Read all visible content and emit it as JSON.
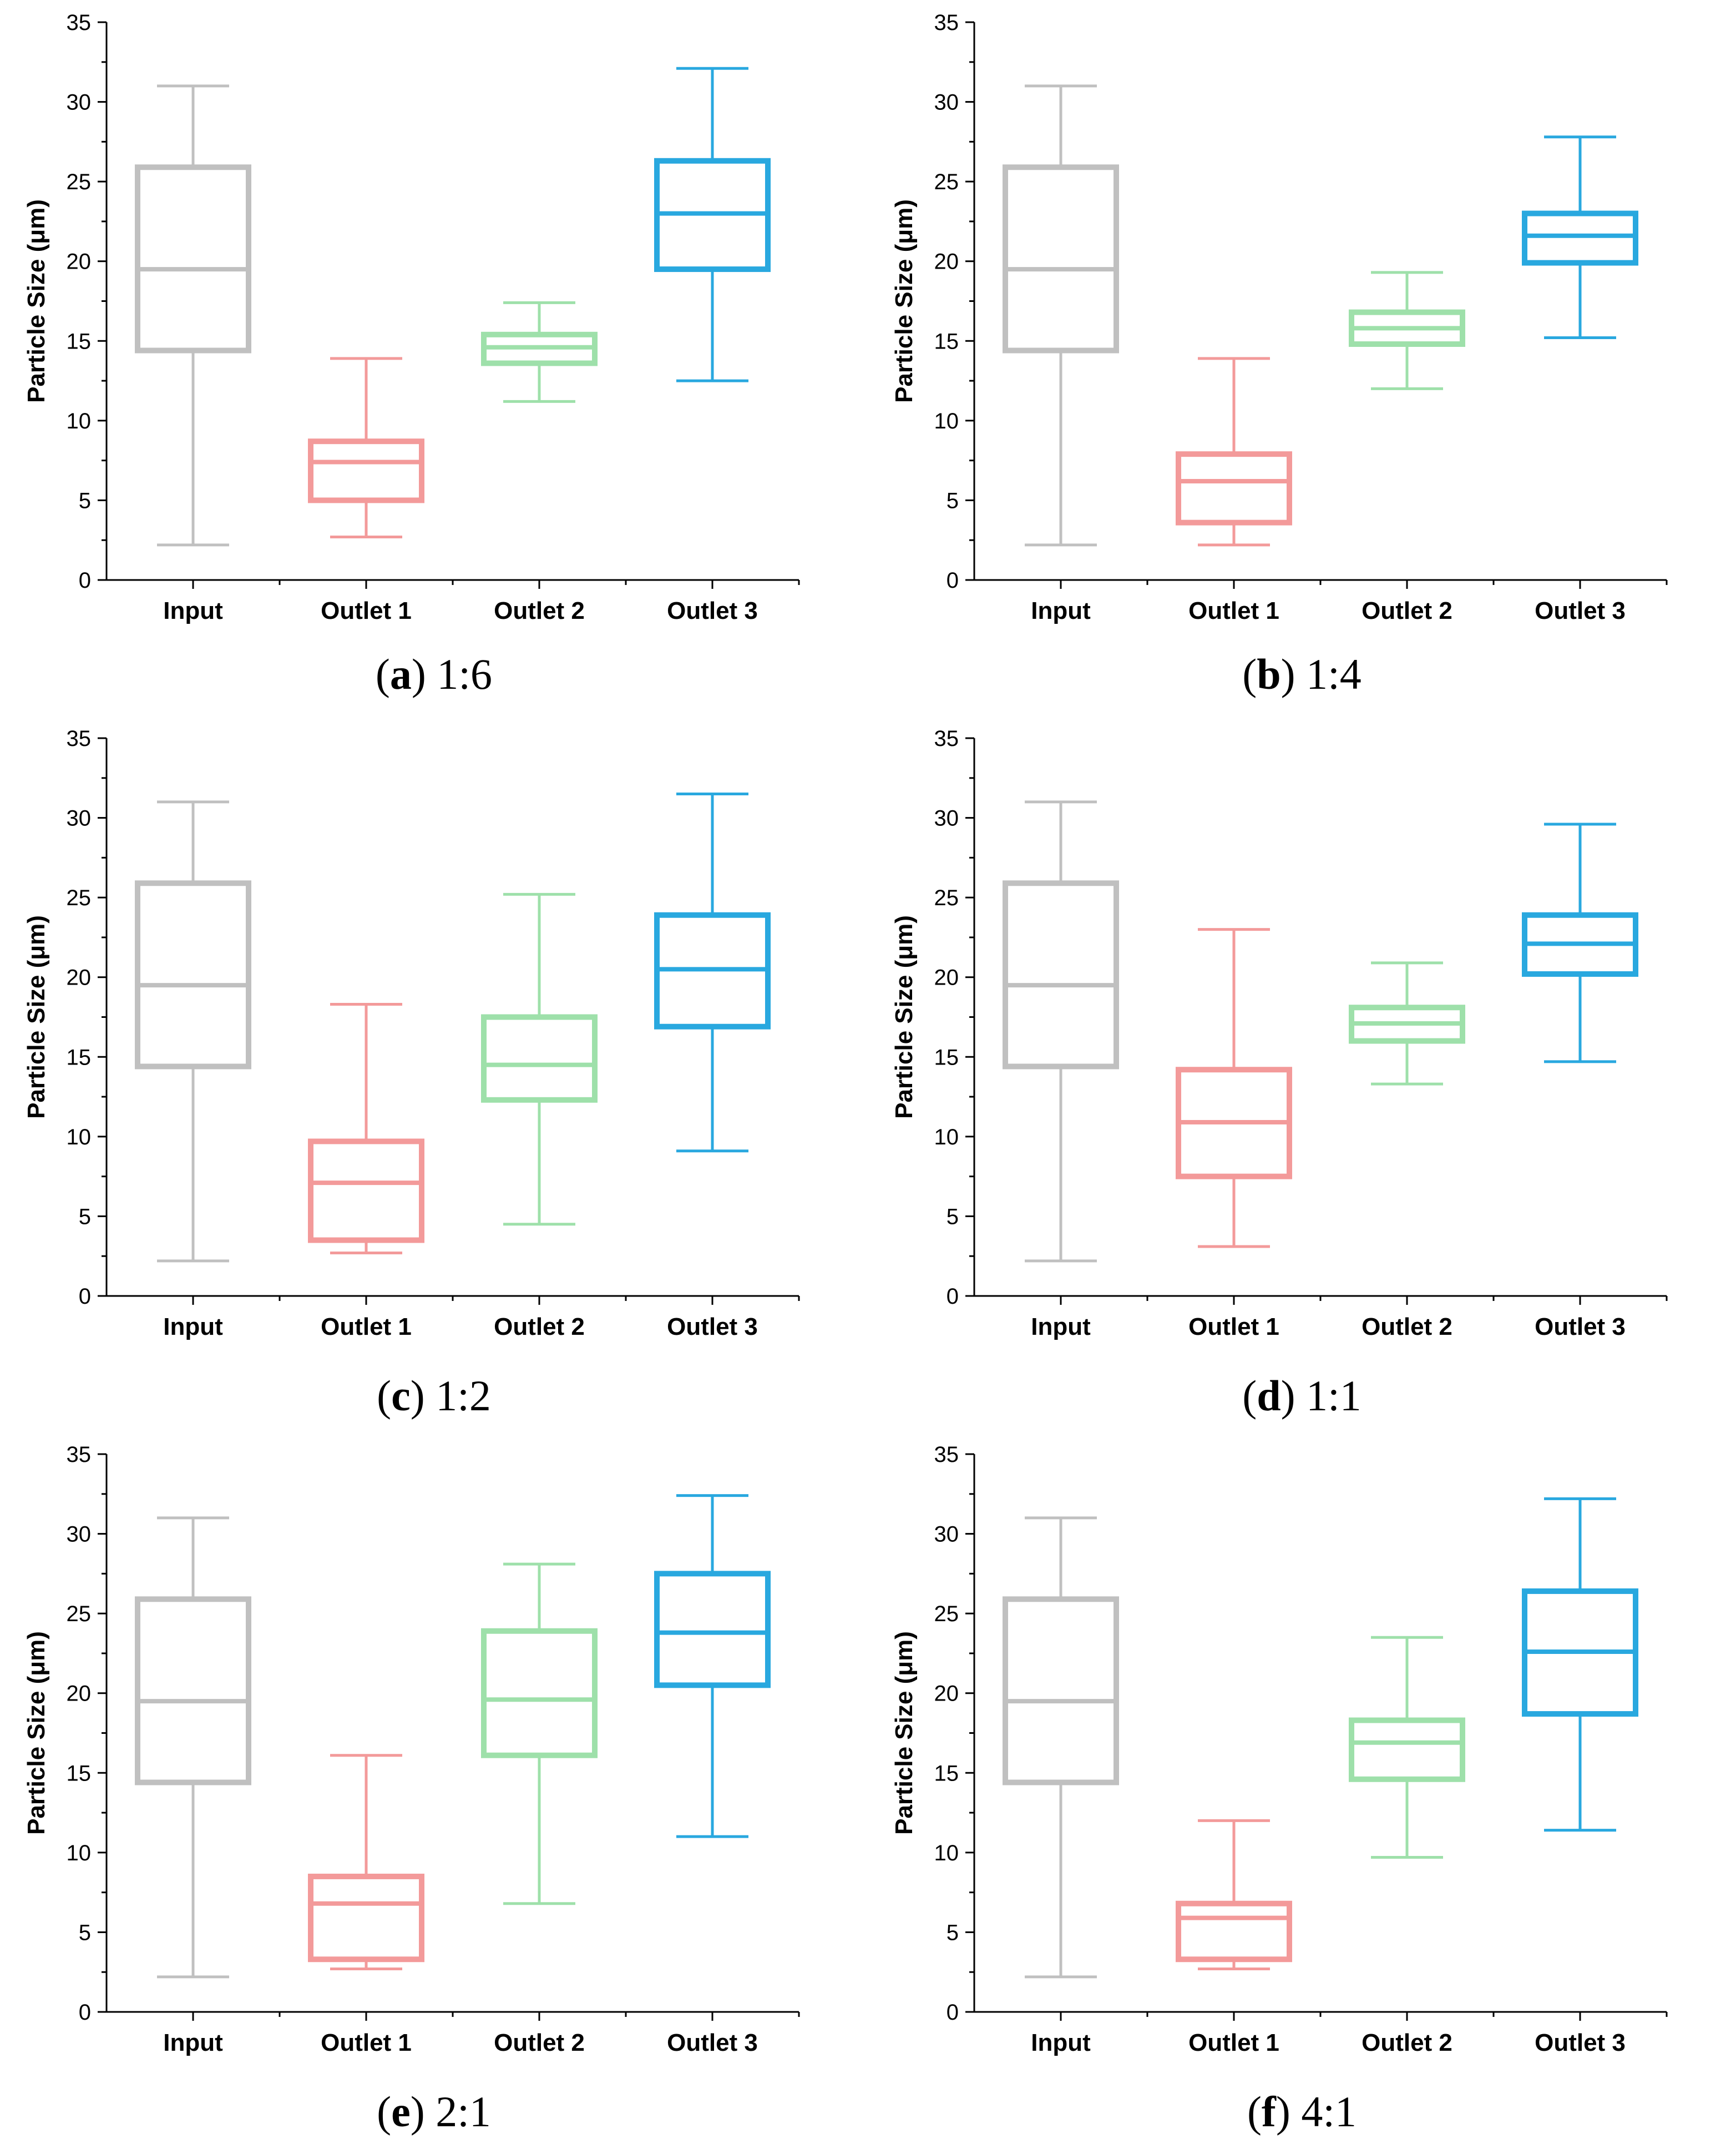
{
  "chart_data": [
    {
      "type": "box",
      "panel_letter": "a",
      "ratio": "1:6",
      "ylabel": "Particle Size (μm)",
      "ylim": [
        0,
        35
      ],
      "yticks": [
        0,
        5,
        10,
        15,
        20,
        25,
        30,
        35
      ],
      "categories": [
        "Input",
        "Outlet 1",
        "Outlet 2",
        "Outlet 3"
      ],
      "boxes": [
        {
          "min": 2.2,
          "q1": 14.4,
          "median": 19.5,
          "q3": 25.9,
          "max": 31.0
        },
        {
          "min": 2.7,
          "q1": 5.0,
          "median": 7.4,
          "q3": 8.7,
          "max": 13.9
        },
        {
          "min": 11.2,
          "q1": 13.6,
          "median": 14.6,
          "q3": 15.4,
          "max": 17.4
        },
        {
          "min": 12.5,
          "q1": 19.5,
          "median": 23.0,
          "q3": 26.3,
          "max": 32.1
        }
      ]
    },
    {
      "type": "box",
      "panel_letter": "b",
      "ratio": "1:4",
      "ylabel": "Particle Size (μm)",
      "ylim": [
        0,
        35
      ],
      "yticks": [
        0,
        5,
        10,
        15,
        20,
        25,
        30,
        35
      ],
      "categories": [
        "Input",
        "Outlet 1",
        "Outlet 2",
        "Outlet 3"
      ],
      "boxes": [
        {
          "min": 2.2,
          "q1": 14.4,
          "median": 19.5,
          "q3": 25.9,
          "max": 31.0
        },
        {
          "min": 2.2,
          "q1": 3.6,
          "median": 6.2,
          "q3": 7.9,
          "max": 13.9
        },
        {
          "min": 12.0,
          "q1": 14.8,
          "median": 15.8,
          "q3": 16.8,
          "max": 19.3
        },
        {
          "min": 15.2,
          "q1": 19.9,
          "median": 21.6,
          "q3": 23.0,
          "max": 27.8
        }
      ]
    },
    {
      "type": "box",
      "panel_letter": "c",
      "ratio": "1:2",
      "ylabel": "Particle Size (μm)",
      "ylim": [
        0,
        35
      ],
      "yticks": [
        0,
        5,
        10,
        15,
        20,
        25,
        30,
        35
      ],
      "categories": [
        "Input",
        "Outlet 1",
        "Outlet 2",
        "Outlet 3"
      ],
      "boxes": [
        {
          "min": 2.2,
          "q1": 14.4,
          "median": 19.5,
          "q3": 25.9,
          "max": 31.0
        },
        {
          "min": 2.7,
          "q1": 3.5,
          "median": 7.1,
          "q3": 9.7,
          "max": 18.3
        },
        {
          "min": 4.5,
          "q1": 12.3,
          "median": 14.5,
          "q3": 17.5,
          "max": 25.2
        },
        {
          "min": 9.1,
          "q1": 16.9,
          "median": 20.5,
          "q3": 23.9,
          "max": 31.5
        }
      ]
    },
    {
      "type": "box",
      "panel_letter": "d",
      "ratio": "1:1",
      "ylabel": "Particle Size (μm)",
      "ylim": [
        0,
        35
      ],
      "yticks": [
        0,
        5,
        10,
        15,
        20,
        25,
        30,
        35
      ],
      "categories": [
        "Input",
        "Outlet 1",
        "Outlet 2",
        "Outlet 3"
      ],
      "boxes": [
        {
          "min": 2.2,
          "q1": 14.4,
          "median": 19.5,
          "q3": 25.9,
          "max": 31.0
        },
        {
          "min": 3.1,
          "q1": 7.5,
          "median": 10.9,
          "q3": 14.2,
          "max": 23.0
        },
        {
          "min": 13.3,
          "q1": 16.0,
          "median": 17.1,
          "q3": 18.1,
          "max": 20.9
        },
        {
          "min": 14.7,
          "q1": 20.2,
          "median": 22.1,
          "q3": 23.9,
          "max": 29.6
        }
      ]
    },
    {
      "type": "box",
      "panel_letter": "e",
      "ratio": "2:1",
      "ylabel": "Particle Size (μm)",
      "ylim": [
        0,
        35
      ],
      "yticks": [
        0,
        5,
        10,
        15,
        20,
        25,
        30,
        35
      ],
      "categories": [
        "Input",
        "Outlet 1",
        "Outlet 2",
        "Outlet 3"
      ],
      "boxes": [
        {
          "min": 2.2,
          "q1": 14.4,
          "median": 19.5,
          "q3": 25.9,
          "max": 31.0
        },
        {
          "min": 2.7,
          "q1": 3.3,
          "median": 6.8,
          "q3": 8.5,
          "max": 16.1
        },
        {
          "min": 6.8,
          "q1": 16.1,
          "median": 19.6,
          "q3": 23.9,
          "max": 28.1
        },
        {
          "min": 11.0,
          "q1": 20.5,
          "median": 23.8,
          "q3": 27.5,
          "max": 32.4
        }
      ]
    },
    {
      "type": "box",
      "panel_letter": "f",
      "ratio": "4:1",
      "ylabel": "Particle Size (μm)",
      "ylim": [
        0,
        35
      ],
      "yticks": [
        0,
        5,
        10,
        15,
        20,
        25,
        30,
        35
      ],
      "categories": [
        "Input",
        "Outlet 1",
        "Outlet 2",
        "Outlet 3"
      ],
      "boxes": [
        {
          "min": 2.2,
          "q1": 14.4,
          "median": 19.5,
          "q3": 25.9,
          "max": 31.0
        },
        {
          "min": 2.7,
          "q1": 3.3,
          "median": 5.9,
          "q3": 6.8,
          "max": 12.0
        },
        {
          "min": 9.7,
          "q1": 14.6,
          "median": 16.9,
          "q3": 18.3,
          "max": 23.5
        },
        {
          "min": 11.4,
          "q1": 18.7,
          "median": 22.6,
          "q3": 26.4,
          "max": 32.2
        }
      ]
    }
  ],
  "colors": {
    "series": [
      "#c0c0c0",
      "#f39a9a",
      "#9ee0aa",
      "#29a8df"
    ],
    "axis": "#000000"
  }
}
